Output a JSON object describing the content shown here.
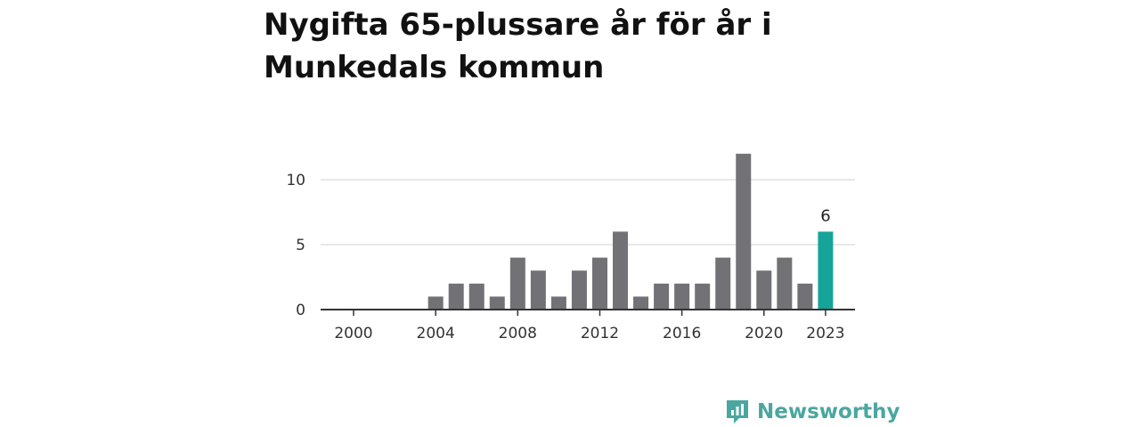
{
  "chart_data": {
    "type": "bar",
    "title": "Nygifta 65-plussare år för år i Munkedals kommun",
    "x": [
      2000,
      2001,
      2002,
      2003,
      2004,
      2005,
      2006,
      2007,
      2008,
      2009,
      2010,
      2011,
      2012,
      2013,
      2014,
      2015,
      2016,
      2017,
      2018,
      2019,
      2020,
      2021,
      2022,
      2023
    ],
    "values": [
      0,
      0,
      0,
      0,
      1,
      2,
      2,
      1,
      4,
      3,
      1,
      3,
      4,
      6,
      1,
      2,
      2,
      2,
      4,
      12,
      3,
      4,
      2,
      6
    ],
    "x_tick_labels": [
      "2000",
      "2004",
      "2008",
      "2012",
      "2016",
      "2020",
      "2023"
    ],
    "y_ticks": [
      0,
      5,
      10
    ],
    "ylim": [
      0,
      12.5
    ],
    "grid": true,
    "highlight": {
      "x": 2023,
      "label": "6"
    },
    "colors": {
      "bar": "#727176",
      "highlight": "#16a39a",
      "grid": "#d9d9d9",
      "axis": "#333333"
    }
  },
  "brand": {
    "name": "Newsworthy",
    "icon": "newsworthy-logo-icon",
    "color": "#4aa7a0"
  }
}
